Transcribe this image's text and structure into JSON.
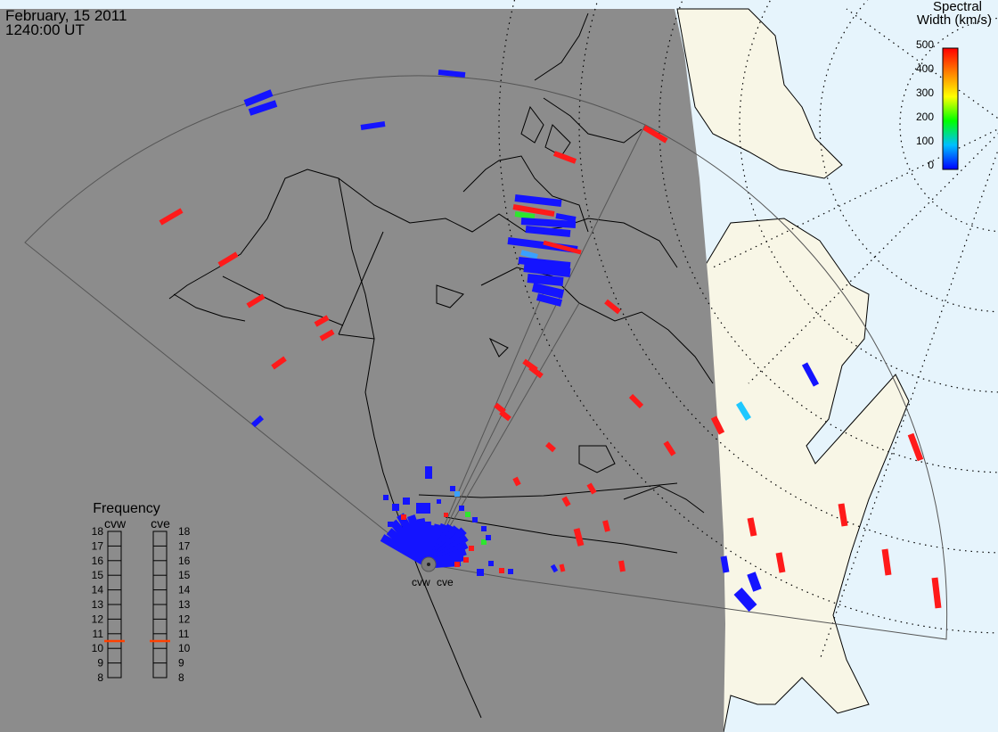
{
  "header": {
    "date": "February, 15 2011",
    "time": "1240:00 UT"
  },
  "colorbar": {
    "title_line1": "Spectral",
    "title_line2": "Width (km/s)",
    "ticks": [
      "500",
      "400",
      "300",
      "200",
      "100",
      "0"
    ],
    "scale": [
      "#0000ff",
      "#00bfff",
      "#00ff00",
      "#ffff00",
      "#ff8000",
      "#ff0000"
    ]
  },
  "frequency_panel": {
    "title": "Frequency",
    "left_label": "cvw",
    "right_label": "cve",
    "scale_labels": [
      "18",
      "17",
      "16",
      "15",
      "14",
      "13",
      "12",
      "11",
      "10",
      "9",
      "8"
    ],
    "cvw_level_mhz": 10.5,
    "cve_level_mhz": 10.5,
    "marker_color": "#ff4000"
  },
  "radars": {
    "west_label": "cvw",
    "east_label": "cve"
  },
  "colors": {
    "night_shade": "#8c8c8c",
    "day_land": "#f8f6e6",
    "ocean_day": "#e6f4fc",
    "coast": "#000000"
  }
}
